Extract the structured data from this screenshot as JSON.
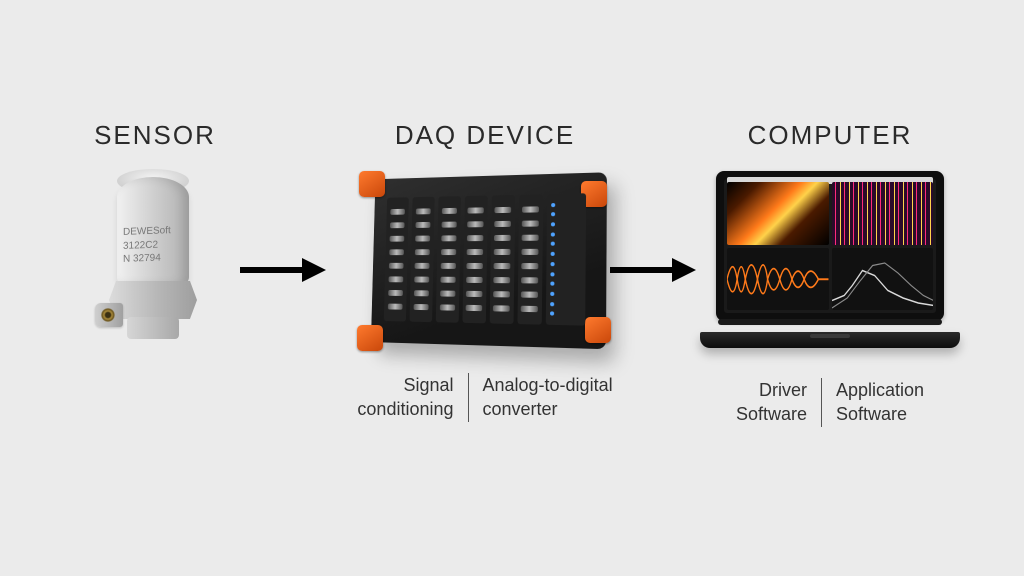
{
  "diagram": {
    "type": "flow-diagram",
    "background_color": "#ebebeb",
    "title_fontsize": 26,
    "title_color": "#2a2a2a",
    "sublabel_fontsize": 18,
    "sublabel_color": "#333333",
    "arrow_color": "#000000",
    "stages": [
      {
        "id": "sensor",
        "title": "SENSOR",
        "device_labels": {
          "brand": "DEWESoft",
          "model": "3122C2",
          "serial": "N 32794"
        },
        "body_gradient": [
          "#f1f1f1",
          "#c9c9c9",
          "#b0b0b0"
        ]
      },
      {
        "id": "daq",
        "title": "DAQ DEVICE",
        "accent_color": "#ff7a2e",
        "body_color": "#1e1e1e",
        "slot_count": 7,
        "ports_per_slot": 8,
        "sublabels": {
          "left": [
            "Signal",
            "conditioning"
          ],
          "right": [
            "Analog-to-digital",
            "converter"
          ]
        }
      },
      {
        "id": "computer",
        "title": "COMPUTER",
        "laptop_color": "#0e0e0e",
        "screen_panels": {
          "spectrogram_colors": [
            "#000000",
            "#4a1a00",
            "#ff7a1a",
            "#ffd24a"
          ],
          "spectrum_colors": [
            "#2a0a2a",
            "#ff2a7a",
            "#ffd24a"
          ],
          "waveform_color": "#ff7a1a",
          "line_color": "#e0e0e0"
        },
        "sublabels": {
          "left": [
            "Driver",
            "Software"
          ],
          "right": [
            "Application",
            "Software"
          ]
        }
      }
    ],
    "arrows": [
      {
        "from": "sensor",
        "to": "daq"
      },
      {
        "from": "daq",
        "to": "computer"
      }
    ]
  }
}
